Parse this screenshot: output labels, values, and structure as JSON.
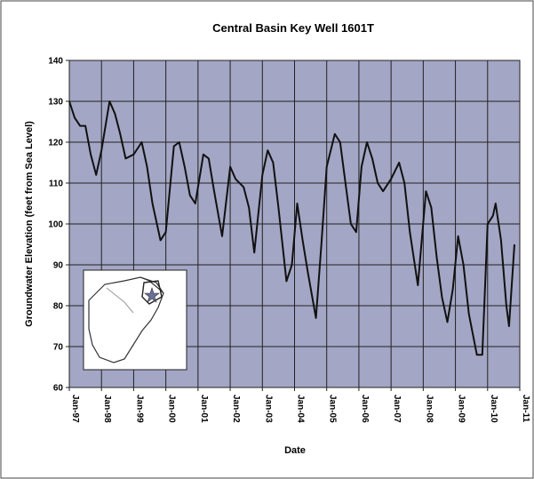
{
  "chart_data": {
    "type": "line",
    "title": "Central Basin Key Well 1601T",
    "x_label": "Date",
    "y_label": "Groundwater Elevation (feet from Sea Level)",
    "x": [
      "1997-01",
      "1997-03",
      "1997-05",
      "1997-07",
      "1997-09",
      "1997-11",
      "1998-01",
      "1998-04",
      "1998-06",
      "1998-08",
      "1998-10",
      "1999-01",
      "1999-04",
      "1999-06",
      "1999-08",
      "1999-11",
      "2000-01",
      "2000-04",
      "2000-06",
      "2000-08",
      "2000-10",
      "2000-12",
      "2001-03",
      "2001-05",
      "2001-07",
      "2001-10",
      "2002-01",
      "2002-03",
      "2002-06",
      "2002-08",
      "2002-10",
      "2003-01",
      "2003-03",
      "2003-05",
      "2003-07",
      "2003-10",
      "2003-12",
      "2004-02",
      "2004-04",
      "2004-06",
      "2004-09",
      "2004-11",
      "2005-01",
      "2005-04",
      "2005-06",
      "2005-08",
      "2005-10",
      "2005-12",
      "2006-02",
      "2006-04",
      "2006-06",
      "2006-08",
      "2006-10",
      "2007-01",
      "2007-04",
      "2007-06",
      "2007-08",
      "2007-11",
      "2008-02",
      "2008-04",
      "2008-06",
      "2008-08",
      "2008-10",
      "2008-12",
      "2009-02",
      "2009-04",
      "2009-06",
      "2009-09",
      "2009-11",
      "2010-01",
      "2010-03",
      "2010-04",
      "2010-06",
      "2010-08",
      "2010-09",
      "2010-11"
    ],
    "series": [
      {
        "name": "Key Well 1601T",
        "color": "#111111",
        "values": [
          130,
          126,
          124,
          124,
          117,
          112,
          118,
          130,
          127,
          122,
          116,
          117,
          120,
          114,
          105,
          96,
          98,
          119,
          120,
          114,
          107,
          105,
          117,
          116,
          108,
          97,
          114,
          111,
          109,
          104,
          93,
          112,
          118,
          115,
          104,
          86,
          90,
          105,
          96,
          88,
          77,
          95,
          114,
          122,
          120,
          110,
          100,
          98,
          114,
          120,
          116,
          110,
          108,
          111,
          115,
          110,
          98,
          85,
          108,
          104,
          92,
          82,
          76,
          84,
          97,
          90,
          78,
          68,
          68,
          100,
          102,
          105,
          96,
          80,
          75,
          95
        ]
      }
    ],
    "xlim": [
      "1997-01",
      "2011-01"
    ],
    "xticks": [
      {
        "value": "1997-01",
        "label": "Jan-97"
      },
      {
        "value": "1998-01",
        "label": "Jan-98"
      },
      {
        "value": "1999-01",
        "label": "Jan-99"
      },
      {
        "value": "2000-01",
        "label": "Jan-00"
      },
      {
        "value": "2001-01",
        "label": "Jan-01"
      },
      {
        "value": "2002-01",
        "label": "Jan-02"
      },
      {
        "value": "2003-01",
        "label": "Jan-03"
      },
      {
        "value": "2004-01",
        "label": "Jan-04"
      },
      {
        "value": "2005-01",
        "label": "Jan-05"
      },
      {
        "value": "2006-01",
        "label": "Jan-06"
      },
      {
        "value": "2007-01",
        "label": "Jan-07"
      },
      {
        "value": "2008-01",
        "label": "Jan-08"
      },
      {
        "value": "2009-01",
        "label": "Jan-09"
      },
      {
        "value": "2010-01",
        "label": "Jan-10"
      },
      {
        "value": "2011-01",
        "label": "Jan-11"
      }
    ],
    "ylim": [
      60,
      140
    ],
    "yticks": [
      60,
      70,
      80,
      90,
      100,
      110,
      120,
      130,
      140
    ],
    "grid": true,
    "plot_background": "#a3a6c4"
  }
}
